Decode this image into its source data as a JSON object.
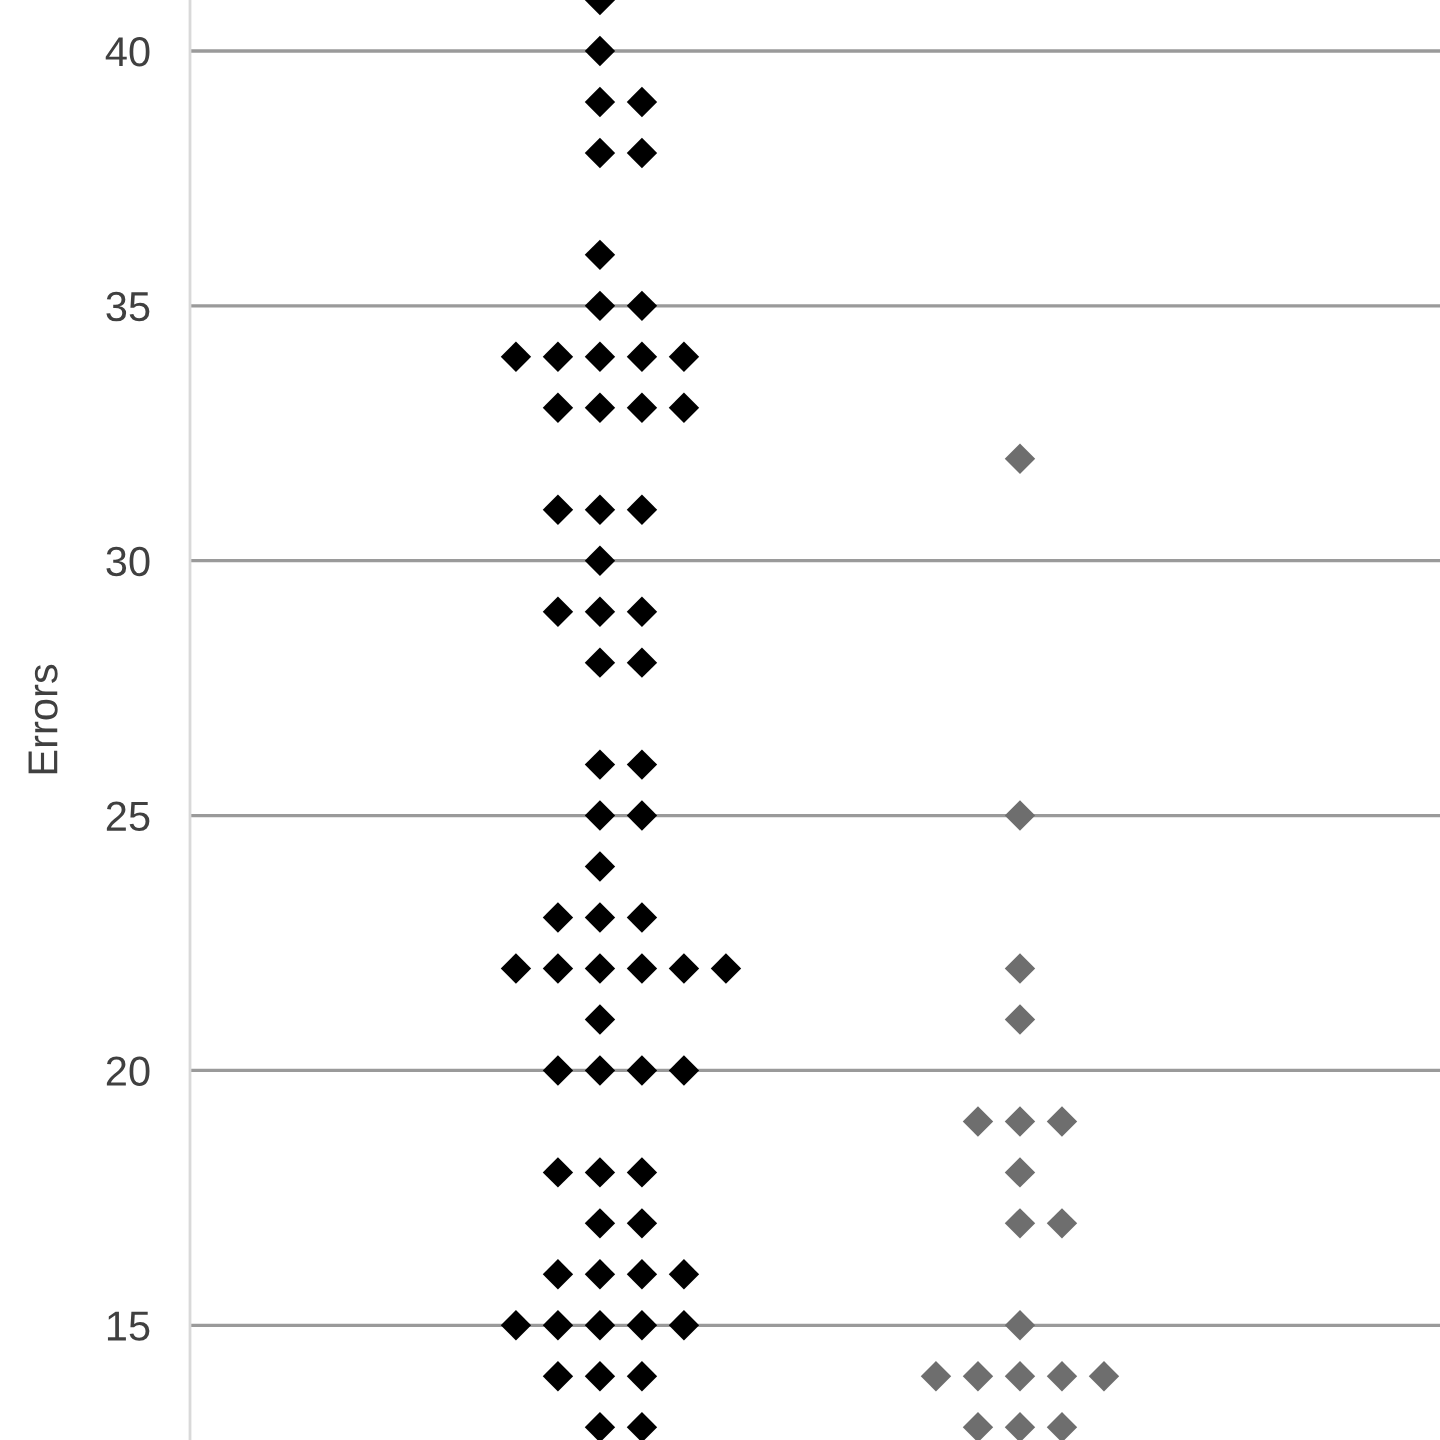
{
  "chart_data": {
    "type": "scatter",
    "ylabel": "Errors",
    "categories": [
      null,
      null
    ],
    "series": [
      {
        "colors": [
          "#000000",
          "#6e6e6e"
        ],
        "values": [
          41,
          32
        ]
      },
      {
        "colors": [
          "#000000",
          "#6e6e6e"
        ],
        "values": [
          40,
          25
        ]
      },
      {
        "colors": [
          "#000000",
          "#6e6e6e"
        ],
        "values": [
          39,
          22
        ]
      },
      {
        "colors": [
          "#000000",
          "#6e6e6e"
        ],
        "values": [
          39,
          21
        ]
      },
      {
        "colors": [
          "#000000",
          "#6e6e6e"
        ],
        "values": [
          38,
          19
        ]
      },
      {
        "colors": [
          "#000000",
          "#6e6e6e"
        ],
        "values": [
          38,
          19
        ]
      },
      {
        "colors": [
          "#000000",
          "#6e6e6e"
        ],
        "values": [
          36,
          19
        ]
      },
      {
        "colors": [
          "#000000",
          "#6e6e6e"
        ],
        "values": [
          35,
          18
        ]
      },
      {
        "colors": [
          "#000000",
          "#6e6e6e"
        ],
        "values": [
          35,
          17
        ]
      },
      {
        "colors": [
          "#000000",
          "#6e6e6e"
        ],
        "values": [
          34,
          17
        ]
      },
      {
        "colors": [
          "#000000",
          "#6e6e6e"
        ],
        "values": [
          34,
          15
        ]
      },
      {
        "colors": [
          "#000000",
          "#6e6e6e"
        ],
        "values": [
          34,
          14
        ]
      },
      {
        "colors": [
          "#000000",
          "#6e6e6e"
        ],
        "values": [
          34,
          14
        ]
      },
      {
        "colors": [
          "#000000",
          "#6e6e6e"
        ],
        "values": [
          34,
          14
        ]
      },
      {
        "colors": [
          "#000000",
          "#6e6e6e"
        ],
        "values": [
          33,
          14
        ]
      },
      {
        "colors": [
          "#000000",
          "#6e6e6e"
        ],
        "values": [
          33,
          14
        ]
      },
      {
        "colors": [
          "#000000",
          "#6e6e6e"
        ],
        "values": [
          33,
          13
        ]
      },
      {
        "colors": [
          "#000000",
          "#6e6e6e"
        ],
        "values": [
          33,
          13
        ]
      },
      {
        "colors": [
          "#000000",
          "#6e6e6e"
        ],
        "values": [
          31,
          13
        ]
      },
      {
        "colors": [
          "#000000",
          null
        ],
        "values": [
          31,
          null
        ]
      },
      {
        "colors": [
          "#000000",
          null
        ],
        "values": [
          31,
          null
        ]
      },
      {
        "colors": [
          "#000000",
          null
        ],
        "values": [
          30,
          null
        ]
      },
      {
        "colors": [
          "#000000",
          null
        ],
        "values": [
          29,
          null
        ]
      },
      {
        "colors": [
          "#000000",
          null
        ],
        "values": [
          29,
          null
        ]
      },
      {
        "colors": [
          "#000000",
          null
        ],
        "values": [
          29,
          null
        ]
      },
      {
        "colors": [
          "#000000",
          null
        ],
        "values": [
          28,
          null
        ]
      },
      {
        "colors": [
          "#000000",
          null
        ],
        "values": [
          28,
          null
        ]
      },
      {
        "colors": [
          "#000000",
          null
        ],
        "values": [
          26,
          null
        ]
      },
      {
        "colors": [
          "#000000",
          null
        ],
        "values": [
          26,
          null
        ]
      },
      {
        "colors": [
          "#000000",
          null
        ],
        "values": [
          25,
          null
        ]
      },
      {
        "colors": [
          "#000000",
          null
        ],
        "values": [
          25,
          null
        ]
      },
      {
        "colors": [
          "#000000",
          null
        ],
        "values": [
          24,
          null
        ]
      },
      {
        "colors": [
          "#000000",
          null
        ],
        "values": [
          23,
          null
        ]
      },
      {
        "colors": [
          "#000000",
          null
        ],
        "values": [
          23,
          null
        ]
      },
      {
        "colors": [
          "#000000",
          null
        ],
        "values": [
          23,
          null
        ]
      },
      {
        "colors": [
          "#000000",
          null
        ],
        "values": [
          22,
          null
        ]
      },
      {
        "colors": [
          "#000000",
          null
        ],
        "values": [
          22,
          null
        ]
      },
      {
        "colors": [
          "#000000",
          null
        ],
        "values": [
          22,
          null
        ]
      },
      {
        "colors": [
          "#000000",
          null
        ],
        "values": [
          22,
          null
        ]
      },
      {
        "colors": [
          "#000000",
          null
        ],
        "values": [
          22,
          null
        ]
      },
      {
        "colors": [
          "#000000",
          null
        ],
        "values": [
          22,
          null
        ]
      },
      {
        "colors": [
          "#000000",
          null
        ],
        "values": [
          21,
          null
        ]
      },
      {
        "colors": [
          "#000000",
          null
        ],
        "values": [
          20,
          null
        ]
      },
      {
        "colors": [
          "#000000",
          null
        ],
        "values": [
          20,
          null
        ]
      },
      {
        "colors": [
          "#000000",
          null
        ],
        "values": [
          20,
          null
        ]
      },
      {
        "colors": [
          "#000000",
          null
        ],
        "values": [
          20,
          null
        ]
      },
      {
        "colors": [
          "#000000",
          null
        ],
        "values": [
          18,
          null
        ]
      },
      {
        "colors": [
          "#000000",
          null
        ],
        "values": [
          18,
          null
        ]
      },
      {
        "colors": [
          "#000000",
          null
        ],
        "values": [
          18,
          null
        ]
      },
      {
        "colors": [
          "#000000",
          null
        ],
        "values": [
          17,
          null
        ]
      },
      {
        "colors": [
          "#000000",
          null
        ],
        "values": [
          17,
          null
        ]
      },
      {
        "colors": [
          "#000000",
          null
        ],
        "values": [
          16,
          null
        ]
      },
      {
        "colors": [
          "#000000",
          null
        ],
        "values": [
          16,
          null
        ]
      },
      {
        "colors": [
          "#000000",
          null
        ],
        "values": [
          16,
          null
        ]
      },
      {
        "colors": [
          "#000000",
          null
        ],
        "values": [
          16,
          null
        ]
      },
      {
        "colors": [
          "#000000",
          null
        ],
        "values": [
          15,
          null
        ]
      },
      {
        "colors": [
          "#000000",
          null
        ],
        "values": [
          15,
          null
        ]
      },
      {
        "colors": [
          "#000000",
          null
        ],
        "values": [
          15,
          null
        ]
      },
      {
        "colors": [
          "#000000",
          null
        ],
        "values": [
          15,
          null
        ]
      },
      {
        "colors": [
          "#000000",
          null
        ],
        "values": [
          15,
          null
        ]
      },
      {
        "colors": [
          "#000000",
          null
        ],
        "values": [
          14,
          null
        ]
      },
      {
        "colors": [
          "#000000",
          null
        ],
        "values": [
          14,
          null
        ]
      },
      {
        "colors": [
          "#000000",
          null
        ],
        "values": [
          14,
          null
        ]
      },
      {
        "colors": [
          "#000000",
          null
        ],
        "values": [
          13,
          null
        ]
      },
      {
        "colors": [
          "#000000",
          null
        ],
        "values": [
          13,
          null
        ]
      }
    ],
    "ylim": [
      12.75,
      41
    ],
    "yticks": [
      15,
      20,
      25,
      30,
      35,
      40
    ],
    "grid": "y",
    "marker": "diamond",
    "tick_labels": "y"
  }
}
